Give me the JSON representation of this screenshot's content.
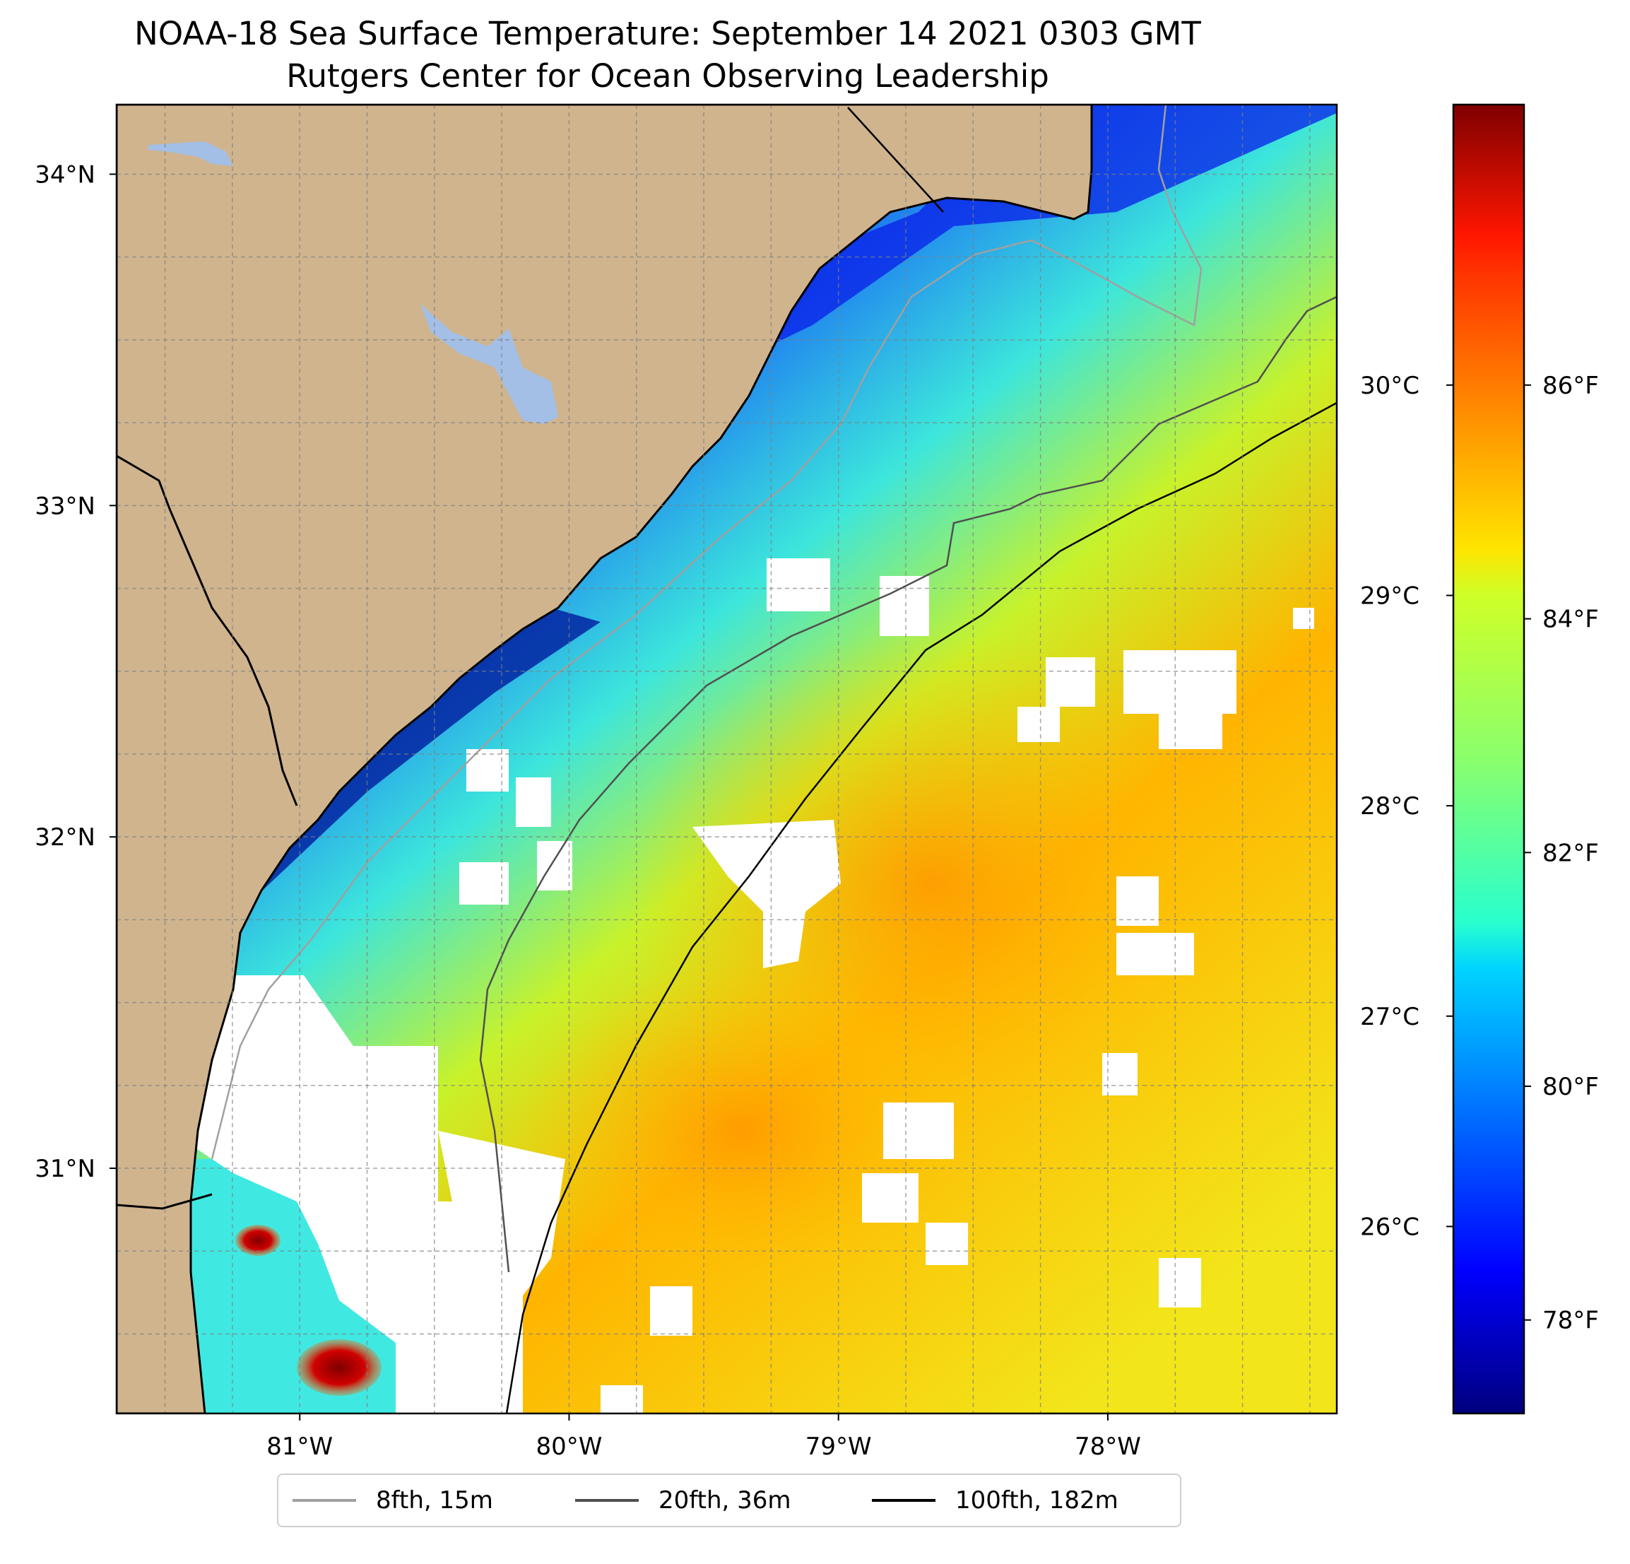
{
  "title": {
    "line1": "NOAA-18 Sea Surface Temperature: September 14 2021 0303 GMT",
    "line2": "Rutgers Center for Ocean Observing Leadership"
  },
  "map": {
    "lat_ticks": [
      {
        "lat": 34,
        "label": "34°N"
      },
      {
        "lat": 33,
        "label": "33°N"
      },
      {
        "lat": 32,
        "label": "32°N"
      },
      {
        "lat": 31,
        "label": "31°N"
      }
    ],
    "lon_ticks": [
      {
        "lon": -81,
        "label": "81°W"
      },
      {
        "lon": -80,
        "label": "80°W"
      },
      {
        "lon": -79,
        "label": "79°W"
      },
      {
        "lon": -78,
        "label": "78°W"
      }
    ],
    "extent": {
      "lon_min": -81.68,
      "lon_max": -77.15,
      "lat_min": 30.26,
      "lat_max": 34.21
    },
    "gridlines": true,
    "land_color": "#cfb48e",
    "water_body_color": "#a3bfe6",
    "cloud_mask_color": "#ffffff"
  },
  "colorbar": {
    "colormap": "jet",
    "celsius_ticks": [
      {
        "value": 26,
        "label": "26°C"
      },
      {
        "value": 27,
        "label": "27°C"
      },
      {
        "value": 28,
        "label": "28°C"
      },
      {
        "value": 29,
        "label": "29°C"
      },
      {
        "value": 30,
        "label": "30°C"
      }
    ],
    "fahrenheit_ticks": [
      {
        "value": 78,
        "label": "78°F"
      },
      {
        "value": 80,
        "label": "80°F"
      },
      {
        "value": 82,
        "label": "82°F"
      },
      {
        "value": 84,
        "label": "84°F"
      },
      {
        "value": 86,
        "label": "86°F"
      }
    ]
  },
  "legend": {
    "placement": "bottom-center",
    "items": [
      {
        "label": "8fth, 15m",
        "color": "#a0a0a0"
      },
      {
        "label": "20fth, 36m",
        "color": "#505050"
      },
      {
        "label": "100fth, 182m",
        "color": "#000000"
      }
    ]
  }
}
